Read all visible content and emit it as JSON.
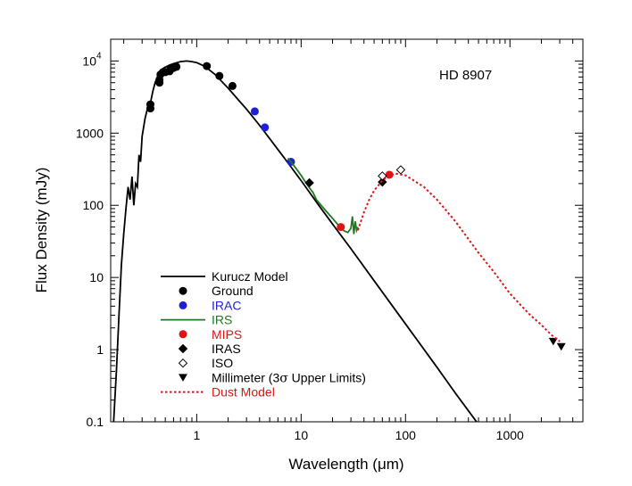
{
  "chart_data": {
    "type": "scatter",
    "title": "",
    "annotation": "HD 8907",
    "xlabel": "Wavelength (μm)",
    "xlabel_prefix": "Wavelength (",
    "xlabel_unit": "μm",
    "xlabel_suffix": ")",
    "ylabel": "Flux Density (mJy)",
    "xscale": "log",
    "yscale": "log",
    "xlim": [
      0.15,
      5000
    ],
    "ylim": [
      0.1,
      20000
    ],
    "x_ticks": [
      {
        "value": 1,
        "label": "1"
      },
      {
        "value": 10,
        "label": "10"
      },
      {
        "value": 100,
        "label": "100"
      },
      {
        "value": 1000,
        "label": "1000"
      }
    ],
    "y_ticks": [
      {
        "value": 0.1,
        "label": "0.1"
      },
      {
        "value": 1,
        "label": "1"
      },
      {
        "value": 10,
        "label": "10"
      },
      {
        "value": 100,
        "label": "100"
      },
      {
        "value": 1000,
        "label": "1000"
      }
    ],
    "y_top_tick": {
      "value": 10000,
      "base": "10",
      "exp": "4"
    },
    "legend": [
      {
        "label": "Kurucz Model",
        "marker": "line",
        "color": "#000000"
      },
      {
        "label": "Ground",
        "marker": "circle",
        "color": "#000000"
      },
      {
        "label": "IRAC",
        "marker": "circle",
        "color": "#1f1fd6"
      },
      {
        "label": "IRS",
        "marker": "line",
        "color": "#1e7a1e"
      },
      {
        "label": "MIPS",
        "marker": "circle",
        "color": "#e01414"
      },
      {
        "label": "IRAS",
        "marker": "diamond",
        "color": "#000000"
      },
      {
        "label": "ISO",
        "marker": "open-diamond",
        "color": "#000000"
      },
      {
        "label_prefix": "Millimeter (3",
        "label_sigma": "σ",
        "label_suffix": "  Upper Limits)",
        "label": "Millimeter (3σ Upper Limits)",
        "marker": "triangle-down",
        "color": "#000000"
      },
      {
        "label": "Dust Model",
        "marker": "dotted-line",
        "color": "#e01414"
      }
    ],
    "series": [
      {
        "name": "Kurucz Model",
        "style": "line",
        "color": "#000000",
        "x": [
          0.16,
          0.17,
          0.18,
          0.19,
          0.2,
          0.21,
          0.22,
          0.23,
          0.24,
          0.25,
          0.26,
          0.27,
          0.28,
          0.29,
          0.3,
          0.32,
          0.34,
          0.36,
          0.38,
          0.4,
          0.42,
          0.45,
          0.5,
          0.55,
          0.6,
          0.7,
          0.8,
          0.9,
          1.0,
          1.2,
          1.5,
          2.0,
          2.5,
          3.0,
          4.0,
          5.0,
          7.0,
          10,
          15,
          20,
          30,
          50,
          100,
          200,
          300,
          500
        ],
        "y": [
          0.1,
          0.5,
          3,
          15,
          40,
          90,
          180,
          120,
          250,
          100,
          200,
          180,
          500,
          400,
          900,
          1600,
          2300,
          2600,
          3800,
          5000,
          6000,
          7500,
          8200,
          8800,
          9200,
          9800,
          10000,
          9800,
          9500,
          8400,
          6500,
          4200,
          2900,
          2150,
          1280,
          840,
          440,
          220,
          97,
          55,
          25,
          9,
          2.27,
          0.57,
          0.25,
          0.092
        ]
      },
      {
        "name": "Ground",
        "style": "circle",
        "color": "#000000",
        "x": [
          0.36,
          0.36,
          0.44,
          0.44,
          0.45,
          0.5,
          0.55,
          0.56,
          0.6,
          0.64,
          1.25,
          1.65,
          2.2
        ],
        "y": [
          2200,
          2500,
          5000,
          5500,
          6500,
          7000,
          7200,
          7800,
          8000,
          8300,
          8500,
          6200,
          4500
        ]
      },
      {
        "name": "IRAC",
        "style": "circle",
        "color": "#1f1fd6",
        "x": [
          3.6,
          4.5,
          8.0
        ],
        "y": [
          2000,
          1200,
          400
        ]
      },
      {
        "name": "IRS",
        "style": "line",
        "color": "#1e7a1e",
        "x": [
          7.5,
          9,
          10,
          11,
          12,
          13,
          14,
          16,
          18,
          20,
          22,
          24,
          26,
          28,
          30,
          31,
          32,
          33,
          34,
          35
        ],
        "y": [
          450,
          320,
          260,
          210,
          175,
          150,
          120,
          95,
          78,
          66,
          56,
          48,
          44,
          42,
          48,
          70,
          40,
          60,
          45,
          50
        ]
      },
      {
        "name": "MIPS",
        "style": "circle",
        "color": "#e01414",
        "x": [
          24,
          70
        ],
        "y": [
          50,
          265
        ]
      },
      {
        "name": "IRAS",
        "style": "diamond",
        "color": "#000000",
        "x": [
          12,
          60
        ],
        "y": [
          205,
          210
        ]
      },
      {
        "name": "ISO",
        "style": "open-diamond",
        "color": "#000000",
        "x": [
          60,
          90
        ],
        "y": [
          255,
          310
        ]
      },
      {
        "name": "Millimeter (3σ Upper Limits)",
        "style": "triangle-down",
        "color": "#000000",
        "x": [
          2600,
          3100
        ],
        "y": [
          1.3,
          1.1
        ]
      },
      {
        "name": "Dust Model",
        "style": "dotted-line",
        "color": "#e01414",
        "x": [
          35,
          40,
          45,
          50,
          60,
          70,
          80,
          100,
          150,
          200,
          300,
          500,
          700,
          1000,
          1500,
          2000,
          2500,
          3000
        ],
        "y": [
          45,
          80,
          120,
          160,
          220,
          260,
          275,
          260,
          180,
          120,
          60,
          22,
          12,
          6,
          3.2,
          2.2,
          1.6,
          1.3
        ]
      }
    ]
  }
}
